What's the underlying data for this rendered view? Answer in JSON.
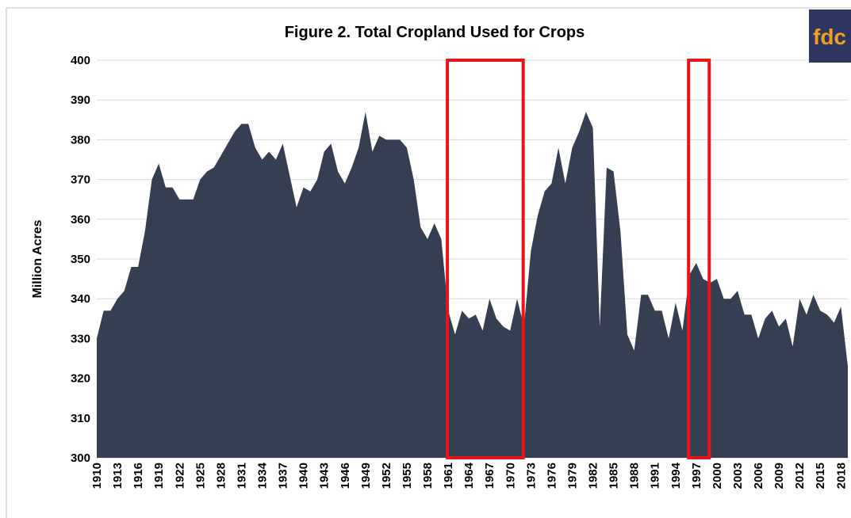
{
  "chart_data": {
    "type": "area",
    "title": "Figure 2. Total Cropland Used for Crops",
    "y_label": "Million Acres",
    "logo": "fdc",
    "color": "#353f51",
    "highlight_color": "#e8141a",
    "grid": true,
    "x": [
      1910,
      1911,
      1912,
      1913,
      1914,
      1915,
      1916,
      1917,
      1918,
      1919,
      1920,
      1921,
      1922,
      1923,
      1924,
      1925,
      1926,
      1927,
      1928,
      1929,
      1930,
      1931,
      1932,
      1933,
      1934,
      1935,
      1936,
      1937,
      1938,
      1939,
      1940,
      1941,
      1942,
      1943,
      1944,
      1945,
      1946,
      1947,
      1948,
      1949,
      1950,
      1951,
      1952,
      1953,
      1954,
      1955,
      1956,
      1957,
      1958,
      1959,
      1960,
      1961,
      1962,
      1963,
      1964,
      1965,
      1966,
      1967,
      1968,
      1969,
      1970,
      1971,
      1972,
      1973,
      1974,
      1975,
      1976,
      1977,
      1978,
      1979,
      1980,
      1981,
      1982,
      1983,
      1984,
      1985,
      1986,
      1987,
      1988,
      1989,
      1990,
      1991,
      1992,
      1993,
      1994,
      1995,
      1996,
      1997,
      1998,
      1999,
      2000,
      2001,
      2002,
      2003,
      2004,
      2005,
      2006,
      2007,
      2008,
      2009,
      2010,
      2011,
      2012,
      2013,
      2014,
      2015,
      2016,
      2017,
      2018,
      2019
    ],
    "values": [
      330,
      337,
      337,
      340,
      342,
      348,
      348,
      357,
      370,
      374,
      368,
      368,
      365,
      365,
      365,
      370,
      372,
      373,
      376,
      379,
      382,
      384,
      384,
      378,
      375,
      377,
      375,
      379,
      371,
      363,
      368,
      367,
      370,
      377,
      379,
      372,
      369,
      373,
      378,
      387,
      377,
      381,
      380,
      380,
      380,
      378,
      370,
      358,
      355,
      359,
      355,
      337,
      331,
      337,
      335,
      336,
      332,
      340,
      335,
      333,
      332,
      340,
      333,
      352,
      361,
      367,
      369,
      378,
      369,
      378,
      382,
      387,
      383,
      333,
      373,
      372,
      357,
      331,
      327,
      341,
      341,
      337,
      337,
      330,
      339,
      332,
      346,
      349,
      345,
      344,
      345,
      340,
      340,
      342,
      336,
      336,
      330,
      335,
      337,
      333,
      335,
      328,
      340,
      336,
      341,
      337,
      336,
      334,
      338,
      323
    ],
    "xlim": [
      1910,
      2019
    ],
    "xticks": [
      1910,
      1913,
      1916,
      1919,
      1922,
      1925,
      1928,
      1931,
      1934,
      1937,
      1940,
      1943,
      1946,
      1949,
      1952,
      1955,
      1958,
      1961,
      1964,
      1967,
      1970,
      1973,
      1976,
      1979,
      1982,
      1985,
      1988,
      1991,
      1994,
      1997,
      2000,
      2003,
      2006,
      2009,
      2012,
      2015,
      2018
    ],
    "ylim": [
      300,
      400
    ],
    "yticks": [
      300,
      310,
      320,
      330,
      340,
      350,
      360,
      370,
      380,
      390,
      400
    ],
    "highlights": [
      [
        1961,
        1972
      ],
      [
        1996,
        1999
      ]
    ]
  }
}
